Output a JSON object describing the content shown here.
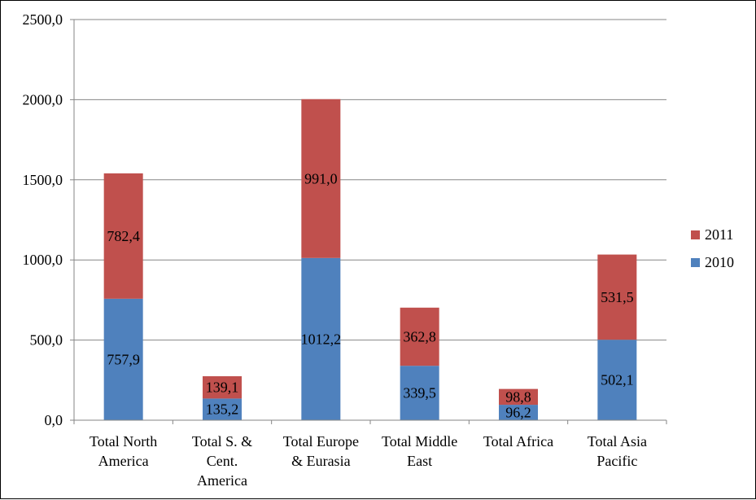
{
  "chart_data": {
    "type": "bar",
    "stacked": true,
    "categories": [
      [
        "Total North",
        "America"
      ],
      [
        "Total S. &",
        "Cent.",
        "America"
      ],
      [
        "Total Europe",
        "& Eurasia"
      ],
      [
        "Total Middle",
        "East"
      ],
      [
        "Total Africa"
      ],
      [
        "Total Asia",
        "Pacific"
      ]
    ],
    "series": [
      {
        "name": "2010",
        "color": "#4F81BD",
        "values": [
          757.9,
          135.2,
          1012.2,
          339.5,
          96.2,
          502.1
        ],
        "labels": [
          "757,9",
          "135,2",
          "1012,2",
          "339,5",
          "96,2",
          "502,1"
        ]
      },
      {
        "name": "2011",
        "color": "#C0504D",
        "values": [
          782.4,
          139.1,
          991.0,
          362.8,
          98.8,
          531.5
        ],
        "labels": [
          "782,4",
          "139,1",
          "991,0",
          "362,8",
          "98,8",
          "531,5"
        ]
      }
    ],
    "ylim": [
      0,
      2500
    ],
    "yticks": [
      0,
      500,
      1000,
      1500,
      2000,
      2500
    ],
    "ytick_labels": [
      "0,0",
      "500,0",
      "1000,0",
      "1500,0",
      "2000,0",
      "2500,0"
    ],
    "grid": true,
    "legend_position": "right",
    "legend_order": [
      "2011",
      "2010"
    ]
  }
}
